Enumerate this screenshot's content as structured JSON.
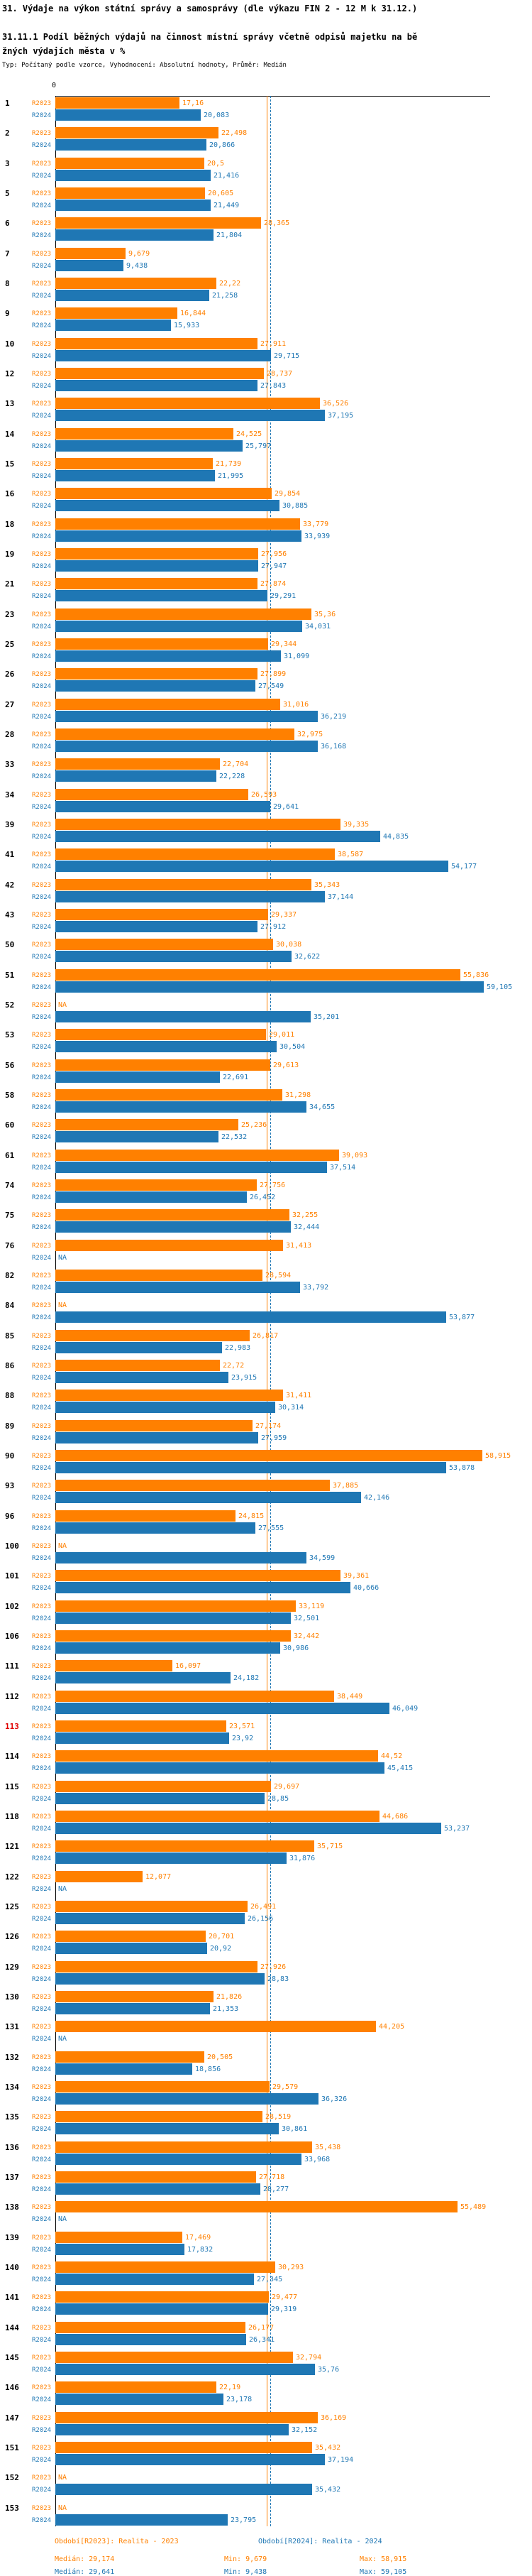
{
  "header": {
    "title": "31. Výdaje na výkon státní správy a samosprávy (dle výkazu FIN 2 - 12 M k 31.12.)",
    "subtitle": "31.11.1 Podíl běžných výdajů na činnost místní správy včetně odpisů majetku na běžných výdajích města v %",
    "meta": "Typ: Počítaný podle vzorce, Vyhodnocení: Absolutní hodnoty, Průměr: Medián"
  },
  "series": {
    "r2023_label": "R2023",
    "r2024_label": "R2024"
  },
  "colors": {
    "r2023": "#FF8000",
    "r2024": "#1F77B4",
    "highlight_row": "#E00000",
    "axis": "#000000"
  },
  "legend": {
    "period_2023": "Období[R2023]: Realita - 2023",
    "period_2024": "Období[R2024]: Realita - 2024",
    "median_2023": "Medián: 29,174",
    "min_2023": "Min: 9,679",
    "max_2023": "Max: 58,915",
    "median_2024": "Medián: 29,641",
    "min_2024": "Min: 9,438",
    "max_2024": "Max: 59,105"
  },
  "chart_data": {
    "type": "bar",
    "orientation": "horizontal",
    "title": "31.11.1 Podíl běžných výdajů na činnost místní správy včetně odpisů majetku na běžných výdajích města v %",
    "x_axis": {
      "min": 0,
      "max": 60,
      "tick_labels": [
        "0"
      ]
    },
    "grid": false,
    "legend_position": "bottom",
    "na_text": "NA",
    "medians": {
      "r2023": 29.174,
      "r2024": 29.641
    },
    "stats": {
      "r2023": {
        "median": 29.174,
        "min": 9.679,
        "max": 58.915
      },
      "r2024": {
        "median": 29.641,
        "min": 9.438,
        "max": 59.105
      }
    },
    "highlighted_row_ids": [
      "113"
    ],
    "rows": [
      {
        "id": "1",
        "r2023": "17,16",
        "r2024": "20,083"
      },
      {
        "id": "2",
        "r2023": "22,498",
        "r2024": "20,866"
      },
      {
        "id": "3",
        "r2023": "20,5",
        "r2024": "21,416"
      },
      {
        "id": "5",
        "r2023": "20,605",
        "r2024": "21,449"
      },
      {
        "id": "6",
        "r2023": "28,365",
        "r2024": "21,804"
      },
      {
        "id": "7",
        "r2023": "9,679",
        "r2024": "9,438"
      },
      {
        "id": "8",
        "r2023": "22,22",
        "r2024": "21,258"
      },
      {
        "id": "9",
        "r2023": "16,844",
        "r2024": "15,933"
      },
      {
        "id": "10",
        "r2023": "27,911",
        "r2024": "29,715"
      },
      {
        "id": "12",
        "r2023": "28,737",
        "r2024": "27,843"
      },
      {
        "id": "13",
        "r2023": "36,526",
        "r2024": "37,195"
      },
      {
        "id": "14",
        "r2023": "24,525",
        "r2024": "25,797"
      },
      {
        "id": "15",
        "r2023": "21,739",
        "r2024": "21,995"
      },
      {
        "id": "16",
        "r2023": "29,854",
        "r2024": "30,885"
      },
      {
        "id": "18",
        "r2023": "33,779",
        "r2024": "33,939"
      },
      {
        "id": "19",
        "r2023": "27,956",
        "r2024": "27,947"
      },
      {
        "id": "21",
        "r2023": "27,874",
        "r2024": "29,291"
      },
      {
        "id": "23",
        "r2023": "35,36",
        "r2024": "34,031"
      },
      {
        "id": "25",
        "r2023": "29,344",
        "r2024": "31,099"
      },
      {
        "id": "26",
        "r2023": "27,899",
        "r2024": "27,549"
      },
      {
        "id": "27",
        "r2023": "31,016",
        "r2024": "36,219"
      },
      {
        "id": "28",
        "r2023": "32,975",
        "r2024": "36,168"
      },
      {
        "id": "33",
        "r2023": "22,704",
        "r2024": "22,228"
      },
      {
        "id": "34",
        "r2023": "26,593",
        "r2024": "29,641"
      },
      {
        "id": "39",
        "r2023": "39,335",
        "r2024": "44,835"
      },
      {
        "id": "41",
        "r2023": "38,587",
        "r2024": "54,177"
      },
      {
        "id": "42",
        "r2023": "35,343",
        "r2024": "37,144"
      },
      {
        "id": "43",
        "r2023": "29,337",
        "r2024": "27,912"
      },
      {
        "id": "50",
        "r2023": "30,038",
        "r2024": "32,622"
      },
      {
        "id": "51",
        "r2023": "55,836",
        "r2024": "59,105"
      },
      {
        "id": "52",
        "r2023": "NA",
        "r2024": "35,201"
      },
      {
        "id": "53",
        "r2023": "29,011",
        "r2024": "30,504"
      },
      {
        "id": "56",
        "r2023": "29,613",
        "r2024": "22,691"
      },
      {
        "id": "58",
        "r2023": "31,298",
        "r2024": "34,655"
      },
      {
        "id": "60",
        "r2023": "25,236",
        "r2024": "22,532"
      },
      {
        "id": "61",
        "r2023": "39,093",
        "r2024": "37,514"
      },
      {
        "id": "74",
        "r2023": "27,756",
        "r2024": "26,452"
      },
      {
        "id": "75",
        "r2023": "32,255",
        "r2024": "32,444"
      },
      {
        "id": "76",
        "r2023": "31,413",
        "r2024": "NA"
      },
      {
        "id": "82",
        "r2023": "28,594",
        "r2024": "33,792"
      },
      {
        "id": "84",
        "r2023": "NA",
        "r2024": "53,877"
      },
      {
        "id": "85",
        "r2023": "26,817",
        "r2024": "22,983"
      },
      {
        "id": "86",
        "r2023": "22,72",
        "r2024": "23,915"
      },
      {
        "id": "88",
        "r2023": "31,411",
        "r2024": "30,314"
      },
      {
        "id": "89",
        "r2023": "27,174",
        "r2024": "27,959"
      },
      {
        "id": "90",
        "r2023": "58,915",
        "r2024": "53,878"
      },
      {
        "id": "93",
        "r2023": "37,885",
        "r2024": "42,146"
      },
      {
        "id": "96",
        "r2023": "24,815",
        "r2024": "27,555"
      },
      {
        "id": "100",
        "r2023": "NA",
        "r2024": "34,599"
      },
      {
        "id": "101",
        "r2023": "39,361",
        "r2024": "40,666"
      },
      {
        "id": "102",
        "r2023": "33,119",
        "r2024": "32,501"
      },
      {
        "id": "106",
        "r2023": "32,442",
        "r2024": "30,986"
      },
      {
        "id": "111",
        "r2023": "16,097",
        "r2024": "24,182"
      },
      {
        "id": "112",
        "r2023": "38,449",
        "r2024": "46,049"
      },
      {
        "id": "113",
        "r2023": "23,571",
        "r2024": "23,92"
      },
      {
        "id": "114",
        "r2023": "44,52",
        "r2024": "45,415"
      },
      {
        "id": "115",
        "r2023": "29,697",
        "r2024": "28,85"
      },
      {
        "id": "118",
        "r2023": "44,686",
        "r2024": "53,237"
      },
      {
        "id": "121",
        "r2023": "35,715",
        "r2024": "31,876"
      },
      {
        "id": "122",
        "r2023": "12,077",
        "r2024": "NA"
      },
      {
        "id": "125",
        "r2023": "26,491",
        "r2024": "26,156"
      },
      {
        "id": "126",
        "r2023": "20,701",
        "r2024": "20,92"
      },
      {
        "id": "129",
        "r2023": "27,926",
        "r2024": "28,83"
      },
      {
        "id": "130",
        "r2023": "21,826",
        "r2024": "21,353"
      },
      {
        "id": "131",
        "r2023": "44,205",
        "r2024": "NA"
      },
      {
        "id": "132",
        "r2023": "20,505",
        "r2024": "18,856"
      },
      {
        "id": "134",
        "r2023": "29,579",
        "r2024": "36,326"
      },
      {
        "id": "135",
        "r2023": "28,519",
        "r2024": "30,861"
      },
      {
        "id": "136",
        "r2023": "35,438",
        "r2024": "33,968"
      },
      {
        "id": "137",
        "r2023": "27,718",
        "r2024": "28,277"
      },
      {
        "id": "138",
        "r2023": "55,489",
        "r2024": "NA"
      },
      {
        "id": "139",
        "r2023": "17,469",
        "r2024": "17,832"
      },
      {
        "id": "140",
        "r2023": "30,293",
        "r2024": "27,345"
      },
      {
        "id": "141",
        "r2023": "29,477",
        "r2024": "29,319"
      },
      {
        "id": "144",
        "r2023": "26,177",
        "r2024": "26,341"
      },
      {
        "id": "145",
        "r2023": "32,794",
        "r2024": "35,76"
      },
      {
        "id": "146",
        "r2023": "22,19",
        "r2024": "23,178"
      },
      {
        "id": "147",
        "r2023": "36,169",
        "r2024": "32,152"
      },
      {
        "id": "151",
        "r2023": "35,432",
        "r2024": "37,194"
      },
      {
        "id": "152",
        "r2023": "NA",
        "r2024": "35,432"
      },
      {
        "id": "153",
        "r2023": "NA",
        "r2024": "23,795"
      }
    ]
  }
}
